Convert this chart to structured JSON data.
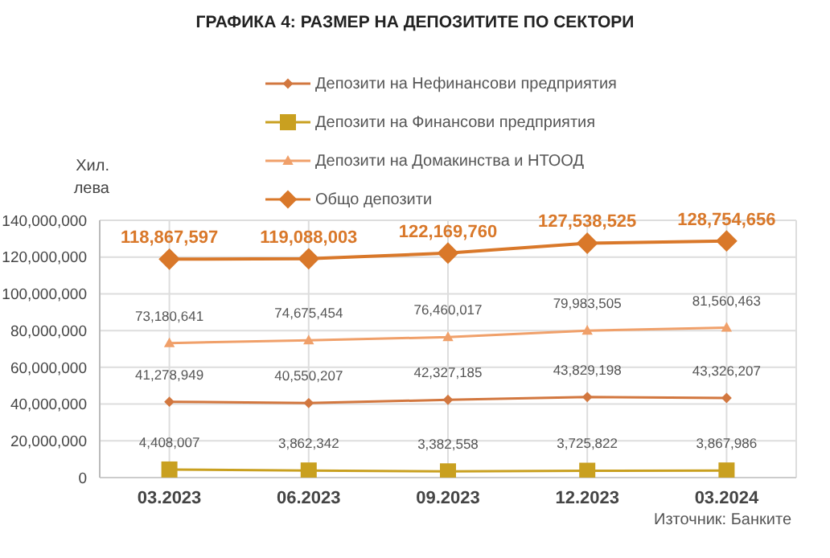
{
  "chart_data": {
    "type": "line",
    "title": "ГРАФИКА 4: РАЗМЕР НА ДЕПОЗИТИТЕ ПО СЕКТОРИ",
    "ylabel": "Хил. лева",
    "categories": [
      "03.2023",
      "06.2023",
      "09.2023",
      "12.2023",
      "03.2024"
    ],
    "series": [
      {
        "name": "Депозити на Нефинансови предприятия",
        "color": "#d2773f",
        "marker": "diamond",
        "values": [
          41278949,
          40550207,
          42327185,
          43829198,
          43326207
        ],
        "value_labels": [
          "41,278,949",
          "40,550,207",
          "42,327,185",
          "43,829,198",
          "43,326,207"
        ]
      },
      {
        "name": "Депозити на Финансови предприятия",
        "color": "#c9a020",
        "marker": "square",
        "values": [
          4408007,
          3862342,
          3382558,
          3725822,
          3867986
        ],
        "value_labels": [
          "4,408,007",
          "3,862,342",
          "3,382,558",
          "3,725,822",
          "3,867,986"
        ]
      },
      {
        "name": "Депозити на Домакинства и НТООД",
        "color": "#f0a06a",
        "marker": "triangle",
        "values": [
          73180641,
          74675454,
          76460017,
          79983505,
          81560463
        ],
        "value_labels": [
          "73,180,641",
          "74,675,454",
          "76,460,017",
          "79,983,505",
          "81,560,463"
        ]
      },
      {
        "name": "Общо депозити",
        "color": "#d9782a",
        "marker": "diamond",
        "values": [
          118867597,
          119088003,
          122169760,
          127538525,
          128754656
        ],
        "value_labels": [
          "118,867,597",
          "119,088,003",
          "122,169,760",
          "127,538,525",
          "128,754,656"
        ]
      }
    ],
    "ylim": [
      0,
      140000000
    ],
    "yticks": [
      0,
      {
        "value": 20000000,
        "label": "20,000,000"
      },
      {
        "value": 40000000,
        "label": "40,000,000"
      },
      {
        "value": 60000000,
        "label": "60,000,000"
      },
      {
        "value": 80000000,
        "label": "80,000,000"
      },
      {
        "value": 100000000,
        "label": "100,000,000"
      },
      {
        "value": 120000000,
        "label": "120,000,000"
      },
      {
        "value": 140000000,
        "label": "140,000,000"
      }
    ],
    "grid": true,
    "legend": "top",
    "annotations": [
      "Източник: Банките"
    ]
  }
}
